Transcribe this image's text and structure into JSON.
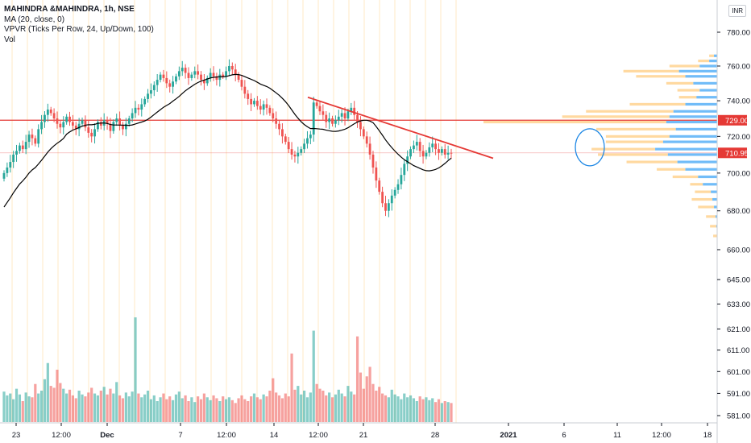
{
  "legend": {
    "title": "MAHINDRA &MAHINDRA, 1h, NSE",
    "ma": "MA (20, close, 0)",
    "vpvr": "VPVR (Ticks Per Row, 24, Up/Down, 100)",
    "vol": "Vol"
  },
  "currency": "INR",
  "colors": {
    "up": "#26a69a",
    "down": "#ef5350",
    "ma_line": "#000000",
    "trendline": "#e53935",
    "hline": "#e53935",
    "vp_up": "#42a5f5",
    "vp_down": "#ffcc80",
    "ellipse": "#1e88e5",
    "session_line": "#ffcc80"
  },
  "chart_data": {
    "type": "candlestick",
    "symbol": "MAHINDRA &MAHINDRA",
    "interval": "1h",
    "exchange": "NSE",
    "y_axis_ticks": [
      "780.00",
      "760.00",
      "740.00",
      "720.00",
      "700.00",
      "680.00",
      "660.00",
      "645.00",
      "633.00",
      "621.00",
      "611.00",
      "601.00",
      "591.00",
      "581.00"
    ],
    "y_scale": "logarithmic",
    "x_axis_ticks": [
      "23",
      "12:00",
      "Dec",
      "7",
      "12:00",
      "14",
      "12:00",
      "21",
      "28",
      "2021",
      "6",
      "11",
      "12:00",
      "18"
    ],
    "bold_x_ticks": [
      "Dec",
      "2021"
    ],
    "price_labels": [
      {
        "value": "729.00",
        "color": "#e53935"
      },
      {
        "value": "710.95",
        "color": "#e53935"
      }
    ],
    "horizontal_level": 729.0,
    "last_price": 710.95,
    "trendline": {
      "from": {
        "x": "Dec 15",
        "price": 742
      },
      "to": {
        "x": "Dec 31",
        "price": 708
      }
    },
    "ma_period": 20,
    "closes": [
      700,
      703,
      706,
      710,
      712,
      715,
      713,
      717,
      721,
      719,
      716,
      724,
      728,
      732,
      735,
      733,
      730,
      727,
      725,
      728,
      731,
      728,
      726,
      724,
      727,
      729,
      725,
      722,
      720,
      724,
      728,
      726,
      729,
      727,
      723,
      728,
      730,
      726,
      724,
      727,
      730,
      733,
      736,
      735,
      738,
      741,
      744,
      746,
      749,
      752,
      755,
      753,
      750,
      748,
      751,
      754,
      757,
      759,
      756,
      753,
      755,
      757,
      755,
      752,
      750,
      753,
      756,
      754,
      752,
      755,
      754,
      757,
      760,
      758,
      755,
      752,
      748,
      744,
      741,
      738,
      740,
      737,
      735,
      738,
      736,
      733,
      730,
      727,
      724,
      720,
      717,
      713,
      710,
      709,
      711,
      713,
      716,
      719,
      721,
      739,
      737,
      734,
      732,
      728,
      730,
      727,
      729,
      731,
      733,
      730,
      734,
      736,
      732,
      728,
      724,
      720,
      716,
      710,
      703,
      696,
      690,
      684,
      680,
      684,
      688,
      691,
      694,
      699,
      705,
      709,
      713,
      715,
      717,
      712,
      709,
      711,
      714,
      716,
      713,
      711,
      713,
      710,
      711,
      710.95
    ],
    "volumes": [
      32,
      28,
      30,
      24,
      35,
      29,
      22,
      31,
      27,
      26,
      40,
      30,
      33,
      45,
      62,
      38,
      36,
      55,
      41,
      35,
      30,
      34,
      28,
      25,
      33,
      29,
      27,
      31,
      36,
      30,
      28,
      33,
      37,
      29,
      35,
      30,
      42,
      28,
      25,
      31,
      27,
      32,
      110,
      30,
      26,
      29,
      33,
      24,
      28,
      22,
      26,
      30,
      24,
      27,
      23,
      29,
      32,
      25,
      28,
      22,
      26,
      21,
      27,
      24,
      30,
      26,
      23,
      28,
      25,
      22,
      27,
      24,
      26,
      23,
      20,
      25,
      28,
      24,
      22,
      27,
      30,
      26,
      24,
      29,
      27,
      33,
      46,
      31,
      28,
      25,
      30,
      27,
      72,
      34,
      38,
      29,
      33,
      26,
      31,
      96,
      40,
      35,
      33,
      28,
      31,
      26,
      29,
      34,
      30,
      27,
      38,
      32,
      29,
      90,
      52,
      35,
      48,
      58,
      40,
      33,
      37,
      30,
      28,
      26,
      34,
      29,
      27,
      24,
      30,
      26,
      28,
      25,
      22,
      27,
      24,
      26,
      23,
      25,
      21,
      24,
      20,
      22,
      21,
      20
    ],
    "volume_profile": [
      {
        "price": 766,
        "up": 4,
        "down": 6
      },
      {
        "price": 763,
        "up": 10,
        "down": 14
      },
      {
        "price": 760,
        "up": 22,
        "down": 38
      },
      {
        "price": 757,
        "up": 48,
        "down": 70
      },
      {
        "price": 754,
        "up": 40,
        "down": 62
      },
      {
        "price": 750,
        "up": 30,
        "down": 34
      },
      {
        "price": 746,
        "up": 22,
        "down": 28
      },
      {
        "price": 742,
        "up": 26,
        "down": 22
      },
      {
        "price": 738,
        "up": 40,
        "down": 70
      },
      {
        "price": 734,
        "up": 55,
        "down": 110
      },
      {
        "price": 731,
        "up": 60,
        "down": 135
      },
      {
        "price": 728,
        "up": 64,
        "down": 230
      },
      {
        "price": 724,
        "up": 52,
        "down": 100
      },
      {
        "price": 720,
        "up": 60,
        "down": 80
      },
      {
        "price": 717,
        "up": 68,
        "down": 72
      },
      {
        "price": 713,
        "up": 78,
        "down": 80
      },
      {
        "price": 710,
        "up": 62,
        "down": 88
      },
      {
        "price": 706,
        "up": 50,
        "down": 64
      },
      {
        "price": 702,
        "up": 40,
        "down": 36
      },
      {
        "price": 698,
        "up": 24,
        "down": 32
      },
      {
        "price": 694,
        "up": 18,
        "down": 16
      },
      {
        "price": 690,
        "up": 8,
        "down": 20
      },
      {
        "price": 686,
        "up": 6,
        "down": 26
      },
      {
        "price": 682,
        "up": 4,
        "down": 20
      },
      {
        "price": 677,
        "up": 2,
        "down": 12
      },
      {
        "price": 672,
        "up": 1,
        "down": 8
      },
      {
        "price": 667,
        "up": 0,
        "down": 5
      }
    ]
  }
}
